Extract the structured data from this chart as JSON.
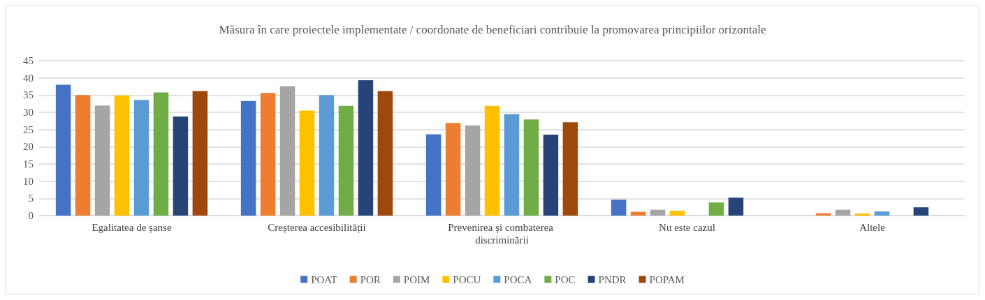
{
  "chart_data": {
    "type": "bar",
    "title": "Măsura în care proiectele implementate / coordonate de beneficiari contribuie la promovarea principiilor orizontale",
    "categories": [
      "Egalitatea de șanse",
      "Creșterea accesibilității",
      "Prevenirea și combaterea discriminării",
      "Nu este cazul",
      "Altele"
    ],
    "series": [
      {
        "name": "POAT",
        "color": "#4472c4",
        "values": [
          38.0,
          33.3,
          23.6,
          4.6,
          null
        ]
      },
      {
        "name": "POR",
        "color": "#ed7d31",
        "values": [
          35.0,
          35.6,
          26.9,
          1.1,
          0.7
        ]
      },
      {
        "name": "POIM",
        "color": "#a5a5a5",
        "values": [
          32.0,
          37.6,
          26.2,
          1.7,
          1.7
        ]
      },
      {
        "name": "POCU",
        "color": "#ffc000",
        "values": [
          34.9,
          30.5,
          31.9,
          1.4,
          0.6
        ]
      },
      {
        "name": "POCA",
        "color": "#5b9bd5",
        "values": [
          33.6,
          35.0,
          29.5,
          null,
          1.2
        ]
      },
      {
        "name": "POC",
        "color": "#70ad47",
        "values": [
          35.8,
          31.9,
          27.9,
          3.8,
          null
        ]
      },
      {
        "name": "PNDR",
        "color": "#264478",
        "values": [
          28.8,
          39.3,
          23.5,
          5.2,
          2.4
        ]
      },
      {
        "name": "POPAM",
        "color": "#9e480e",
        "values": [
          36.2,
          36.2,
          27.1,
          null,
          null
        ]
      }
    ],
    "ylim": [
      0,
      45
    ],
    "yticks": [
      0,
      5,
      10,
      15,
      20,
      25,
      30,
      35,
      40,
      45
    ],
    "grid": "y",
    "legend": "bottom"
  }
}
